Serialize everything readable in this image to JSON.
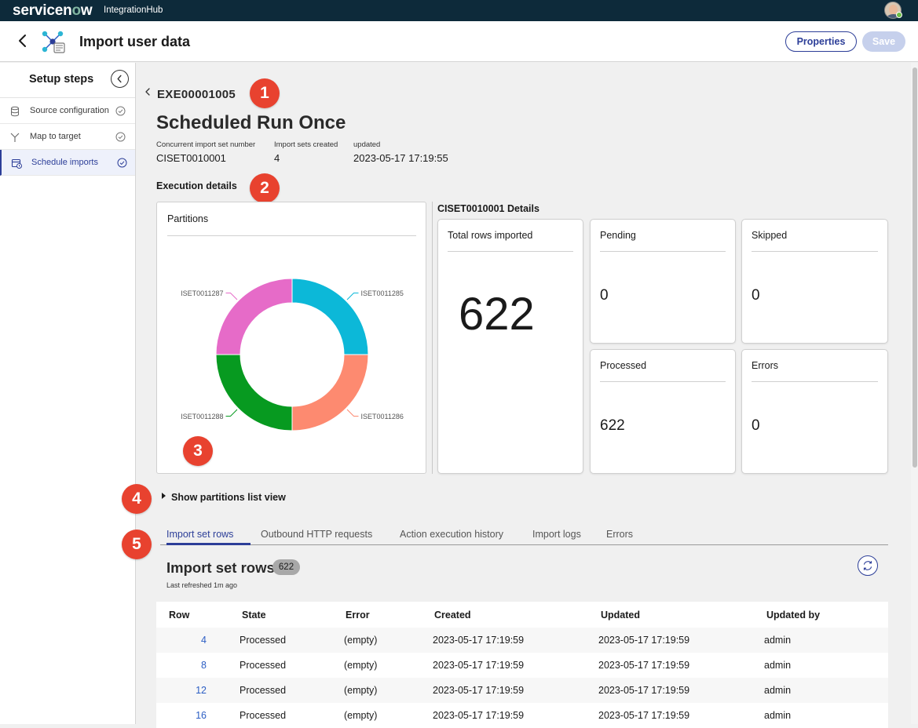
{
  "brand": {
    "logo_pre": "servicen",
    "logo_o": "o",
    "logo_post": "w",
    "product": "IntegrationHub"
  },
  "header": {
    "title": "Import user data",
    "properties_label": "Properties",
    "save_label": "Save"
  },
  "sidebar": {
    "title": "Setup steps",
    "items": [
      {
        "label": "Source configuration",
        "icon": "database-icon",
        "done": true
      },
      {
        "label": "Map to target",
        "icon": "branch-icon",
        "done": true
      },
      {
        "label": "Schedule imports",
        "icon": "calendar-icon",
        "done": true,
        "active": true
      }
    ]
  },
  "execution": {
    "id": "EXE00001005",
    "title": "Scheduled Run Once",
    "meta": [
      {
        "label": "Concurrent import set number",
        "value": "CISET0010001"
      },
      {
        "label": "Import sets created",
        "value": "4"
      },
      {
        "label": "updated",
        "value": "2023-05-17 17:19:55"
      }
    ],
    "details_heading": "Execution details"
  },
  "partitions": {
    "title": "Partitions",
    "slices": [
      {
        "label": "ISET0011285",
        "value": 1,
        "color": "#0cb8d8"
      },
      {
        "label": "ISET0011286",
        "value": 1,
        "color": "#fd8a70"
      },
      {
        "label": "ISET0011288",
        "value": 1,
        "color": "#079a20"
      },
      {
        "label": "ISET0011287",
        "value": 1,
        "color": "#e66bc8"
      }
    ]
  },
  "details": {
    "title": "CISET0010001 Details",
    "total": {
      "label": "Total rows imported",
      "value": "622"
    },
    "pending": {
      "label": "Pending",
      "value": "0"
    },
    "skipped": {
      "label": "Skipped",
      "value": "0"
    },
    "processed": {
      "label": "Processed",
      "value": "622"
    },
    "errors": {
      "label": "Errors",
      "value": "0"
    }
  },
  "show_partitions_label": "Show partitions list view",
  "tabs": [
    {
      "label": "Import set rows",
      "active": true
    },
    {
      "label": "Outbound HTTP requests"
    },
    {
      "label": "Action execution history"
    },
    {
      "label": "Import logs"
    },
    {
      "label": "Errors"
    }
  ],
  "rows_panel": {
    "title": "Import set rows",
    "count": "622",
    "last_refreshed": "Last refreshed 1m ago",
    "columns": [
      "Row",
      "State",
      "Error",
      "Created",
      "Updated",
      "Updated by"
    ],
    "rows": [
      [
        "4",
        "Processed",
        "(empty)",
        "2023-05-17 17:19:59",
        "2023-05-17 17:19:59",
        "admin"
      ],
      [
        "8",
        "Processed",
        "(empty)",
        "2023-05-17 17:19:59",
        "2023-05-17 17:19:59",
        "admin"
      ],
      [
        "12",
        "Processed",
        "(empty)",
        "2023-05-17 17:19:59",
        "2023-05-17 17:19:59",
        "admin"
      ],
      [
        "16",
        "Processed",
        "(empty)",
        "2023-05-17 17:19:59",
        "2023-05-17 17:19:59",
        "admin"
      ]
    ]
  },
  "badges": [
    "1",
    "2",
    "3",
    "4",
    "5"
  ],
  "colors": {
    "accent": "#2c3e98",
    "brand_bar": "#0d2a3a",
    "badge": "#e8422f"
  }
}
